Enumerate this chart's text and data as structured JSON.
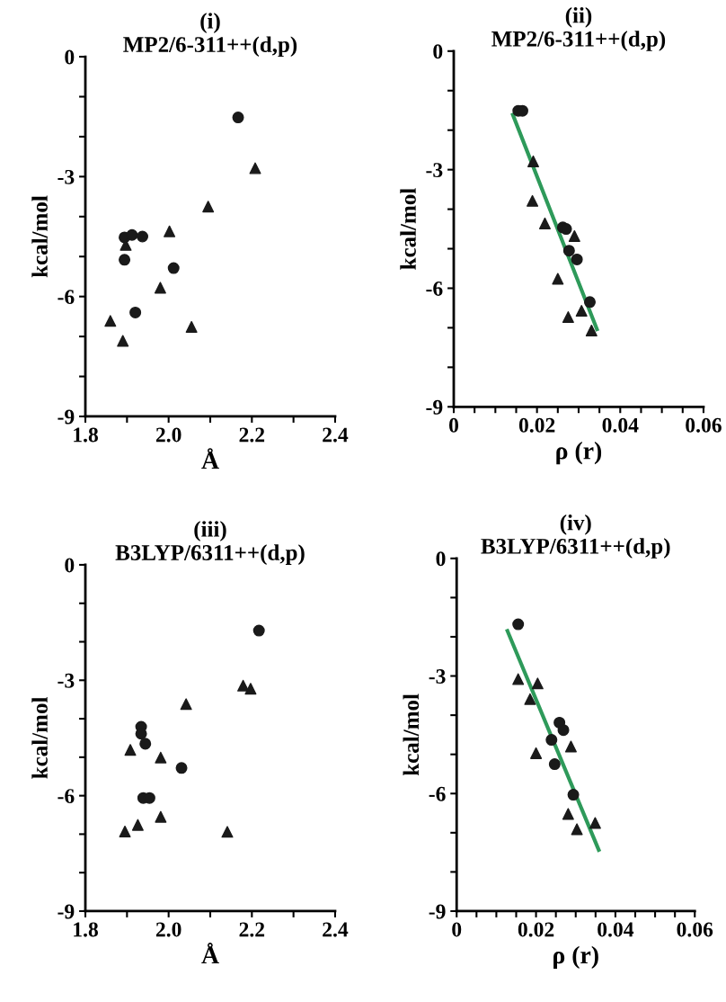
{
  "chart_data": [
    {
      "type": "scatter",
      "title": "(i)\nMP2/6-311++(d,p)",
      "xlabel": "Å",
      "ylabel": "kcal/mol",
      "xlim": [
        1.8,
        2.4
      ],
      "xticks": [
        1.8,
        {
          "value": 1.9,
          "label": null
        },
        {
          "value": 2,
          "label": "2.0"
        },
        {
          "value": 2.1,
          "label": null
        },
        2.2,
        {
          "value": 2.3,
          "label": null
        },
        2.4
      ],
      "ylim": [
        -9,
        0
      ],
      "yticks": [
        -9,
        {
          "value": -8,
          "label": null
        },
        {
          "value": -7,
          "label": null
        },
        -6,
        {
          "value": -5,
          "label": null
        },
        {
          "value": -4,
          "label": null
        },
        -3,
        {
          "value": -2,
          "label": null
        },
        {
          "value": -1,
          "label": null
        },
        0
      ],
      "grid": false,
      "legend": false,
      "series": [
        {
          "marker": "circle",
          "color": "#1a1a1a",
          "x": [
            2.167,
            1.894,
            1.912,
            1.937,
            1.894,
            2.012,
            1.92
          ],
          "values": [
            -1.52,
            -4.52,
            -4.46,
            -4.5,
            -5.08,
            -5.29,
            -6.4
          ]
        },
        {
          "marker": "triangle",
          "color": "#1a1a1a",
          "x": [
            2.208,
            2.095,
            2.002,
            1.897,
            1.98,
            1.86,
            1.89,
            2.055
          ],
          "values": [
            -2.79,
            -3.75,
            -4.37,
            -4.71,
            -5.78,
            -6.61,
            -7.11,
            -6.76
          ]
        }
      ]
    },
    {
      "type": "scatter",
      "title": "(ii)\nMP2/6-311++(d,p)",
      "xlabel": "ρ (r)",
      "ylabel": "kcal/mol",
      "xlim": [
        0,
        0.06
      ],
      "xticks": [
        0,
        {
          "value": 0.005,
          "label": null
        },
        {
          "value": 0.01,
          "label": null
        },
        {
          "value": 0.015,
          "label": null
        },
        0.02,
        {
          "value": 0.025,
          "label": null
        },
        {
          "value": 0.03,
          "label": null
        },
        {
          "value": 0.035,
          "label": null
        },
        0.04,
        {
          "value": 0.045,
          "label": null
        },
        {
          "value": 0.05,
          "label": null
        },
        {
          "value": 0.055,
          "label": null
        },
        0.06
      ],
      "ylim": [
        -9,
        0
      ],
      "yticks": [
        -9,
        {
          "value": -8,
          "label": null
        },
        {
          "value": -7,
          "label": null
        },
        -6,
        {
          "value": -5,
          "label": null
        },
        {
          "value": -4,
          "label": null
        },
        -3,
        {
          "value": -2,
          "label": null
        },
        {
          "value": -1,
          "label": null
        },
        0
      ],
      "grid": false,
      "legend": false,
      "series": [
        {
          "type": "line",
          "color": "#2e9a5a",
          "marker": "none",
          "x": [
            0.0142,
            0.0344
          ],
          "values": [
            -1.61,
            -7.04
          ]
        },
        {
          "marker": "circle",
          "color": "#1a1a1a",
          "x": [
            0.0155,
            0.0165,
            0.0262,
            0.027,
            0.0277,
            0.0296,
            0.0327
          ],
          "values": [
            -1.51,
            -1.51,
            -4.46,
            -4.5,
            -5.05,
            -5.27,
            -6.35
          ]
        },
        {
          "marker": "triangle",
          "color": "#1a1a1a",
          "x": [
            0.0191,
            0.0189,
            0.0219,
            0.029,
            0.025,
            0.0275,
            0.0307,
            0.0331
          ],
          "values": [
            -2.79,
            -3.79,
            -4.36,
            -4.68,
            -5.76,
            -6.73,
            -6.57,
            -7.07
          ]
        }
      ]
    },
    {
      "type": "scatter",
      "title": "(iii)\nB3LYP/6311++(d,p)",
      "xlabel": "Å",
      "ylabel": "kcal/mol",
      "xlim": [
        1.8,
        2.4
      ],
      "xticks": [
        1.8,
        {
          "value": 1.9,
          "label": null
        },
        {
          "value": 2,
          "label": "2.0"
        },
        {
          "value": 2.1,
          "label": null
        },
        2.2,
        {
          "value": 2.3,
          "label": null
        },
        2.4
      ],
      "ylim": [
        -9,
        0
      ],
      "yticks": [
        -9,
        {
          "value": -8,
          "label": null
        },
        {
          "value": -7,
          "label": null
        },
        -6,
        {
          "value": -5,
          "label": null
        },
        {
          "value": -4,
          "label": null
        },
        -3,
        {
          "value": -2,
          "label": null
        },
        {
          "value": -1,
          "label": null
        },
        0
      ],
      "grid": false,
      "legend": false,
      "series": [
        {
          "marker": "circle",
          "color": "#1a1a1a",
          "x": [
            2.217,
            1.934,
            1.934,
            1.944,
            2.031,
            1.939,
            1.954
          ],
          "values": [
            -1.71,
            -4.21,
            -4.39,
            -4.65,
            -5.28,
            -6.06,
            -6.06
          ]
        },
        {
          "marker": "triangle",
          "color": "#1a1a1a",
          "x": [
            2.179,
            2.197,
            2.042,
            1.908,
            1.981,
            1.926,
            1.981,
            1.895,
            2.141
          ],
          "values": [
            -3.14,
            -3.22,
            -3.62,
            -4.81,
            -5.01,
            -6.76,
            -6.55,
            -6.93,
            -6.94
          ]
        }
      ]
    },
    {
      "type": "scatter",
      "title": "(iv)\nB3LYP/6311++(d,p)",
      "xlabel": "ρ (r)",
      "ylabel": "kcal/mol",
      "xlim": [
        0,
        0.06
      ],
      "xticks": [
        0,
        {
          "value": 0.005,
          "label": null
        },
        {
          "value": 0.01,
          "label": null
        },
        {
          "value": 0.015,
          "label": null
        },
        0.02,
        {
          "value": 0.025,
          "label": null
        },
        {
          "value": 0.03,
          "label": null
        },
        {
          "value": 0.035,
          "label": null
        },
        0.04,
        {
          "value": 0.045,
          "label": null
        },
        {
          "value": 0.05,
          "label": null
        },
        {
          "value": 0.055,
          "label": null
        },
        0.06
      ],
      "ylim": [
        -9,
        0
      ],
      "yticks": [
        -9,
        {
          "value": -8,
          "label": null
        },
        {
          "value": -7,
          "label": null
        },
        -6,
        {
          "value": -5,
          "label": null
        },
        {
          "value": -4,
          "label": null
        },
        -3,
        {
          "value": -2,
          "label": null
        },
        {
          "value": -1,
          "label": null
        },
        0
      ],
      "grid": false,
      "legend": false,
      "series": [
        {
          "type": "line",
          "color": "#2e9a5a",
          "marker": "none",
          "x": [
            0.0128,
            0.0358
          ],
          "values": [
            -1.85,
            -7.44
          ]
        },
        {
          "marker": "circle",
          "color": "#1a1a1a",
          "x": [
            0.0155,
            0.0259,
            0.0269,
            0.0239,
            0.0247,
            0.0294
          ],
          "values": [
            -1.68,
            -4.19,
            -4.38,
            -4.63,
            -5.25,
            -6.03
          ]
        },
        {
          "marker": "triangle",
          "color": "#1a1a1a",
          "x": [
            0.0155,
            0.0204,
            0.0185,
            0.02,
            0.0288,
            0.0281,
            0.0303,
            0.0349
          ],
          "values": [
            -3.08,
            -3.19,
            -3.59,
            -4.97,
            -4.8,
            -6.52,
            -6.91,
            -6.75
          ]
        }
      ]
    }
  ]
}
